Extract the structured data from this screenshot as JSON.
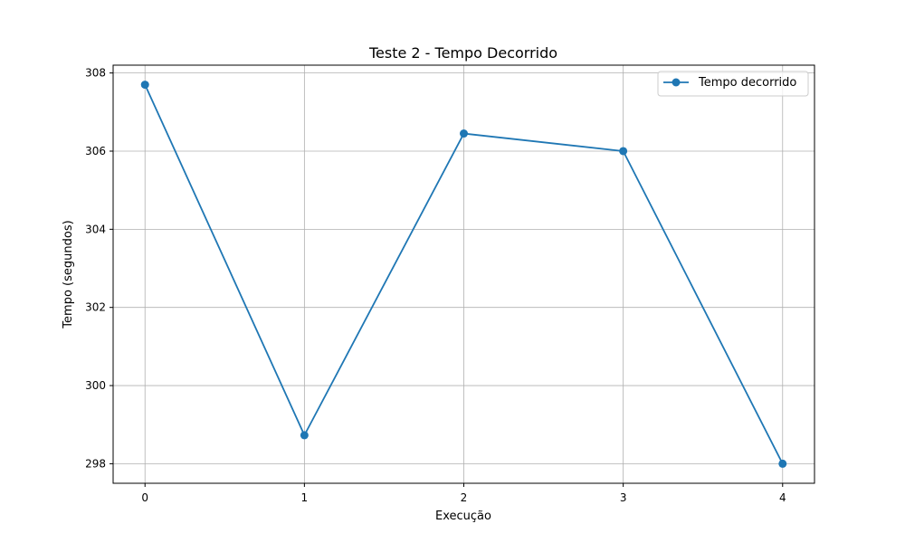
{
  "chart_data": {
    "type": "line",
    "title": "Teste 2 - Tempo Decorrido",
    "xlabel": "Execução",
    "ylabel": "Tempo (segundos)",
    "x": [
      0,
      1,
      2,
      3,
      4
    ],
    "xticks": [
      "0",
      "1",
      "2",
      "3",
      "4"
    ],
    "yticks": [
      "298",
      "300",
      "302",
      "304",
      "306",
      "308"
    ],
    "xlim": [
      -0.2,
      4.2
    ],
    "ylim": [
      297.5,
      308.2
    ],
    "grid": true,
    "legend_position": "upper-right",
    "series": [
      {
        "name": "Tempo decorrido",
        "color": "#1f77b4",
        "marker": "circle",
        "values": [
          307.7,
          298.73,
          306.45,
          306.0,
          298.0
        ]
      }
    ]
  }
}
